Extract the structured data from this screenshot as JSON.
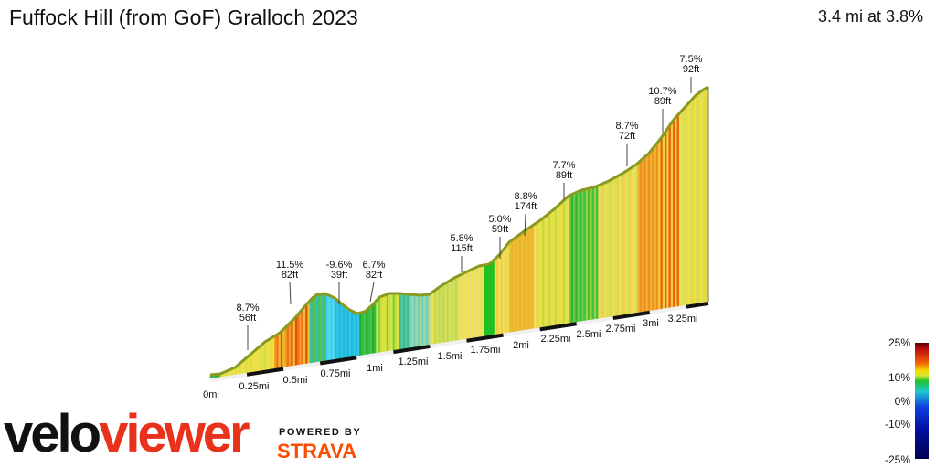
{
  "header": {
    "title": "Fuffock Hill (from GoF) Gralloch 2023",
    "summary": "3.4 mi at 3.8%"
  },
  "branding": {
    "logo_part1": "velo",
    "logo_part2": "viewer",
    "powered_by": "POWERED BY",
    "strava": "STRAVA"
  },
  "legend": {
    "labels": [
      "25%",
      "10%",
      "0%",
      "-10%",
      "-25%"
    ]
  },
  "colors": {
    "profile_edge": "#8a9a20",
    "axis_line": "#111111"
  },
  "chart_data": {
    "type": "area",
    "xlabel": "",
    "ylabel": "",
    "distance_ticks": [
      "0mi",
      "0.25mi",
      "0.5mi",
      "0.75mi",
      "1mi",
      "1.25mi",
      "1.5mi",
      "1.75mi",
      "2mi",
      "2.25mi",
      "2.5mi",
      "2.75mi",
      "3mi",
      "3.25mi"
    ],
    "distance_range_mi": [
      0,
      3.4
    ],
    "gradient_scale_percent": [
      25,
      10,
      0,
      -10,
      -25
    ],
    "annotations": [
      {
        "gradient": "8.7%",
        "length": "56ft"
      },
      {
        "gradient": "11.5%",
        "length": "82ft"
      },
      {
        "gradient": "-9.6%",
        "length": "39ft"
      },
      {
        "gradient": "6.7%",
        "length": "82ft"
      },
      {
        "gradient": "5.8%",
        "length": "115ft"
      },
      {
        "gradient": "5.0%",
        "length": "59ft"
      },
      {
        "gradient": "8.8%",
        "length": "174ft"
      },
      {
        "gradient": "7.7%",
        "length": "89ft"
      },
      {
        "gradient": "8.7%",
        "length": "72ft"
      },
      {
        "gradient": "10.7%",
        "length": "89ft"
      },
      {
        "gradient": "7.5%",
        "length": "92ft"
      }
    ]
  }
}
